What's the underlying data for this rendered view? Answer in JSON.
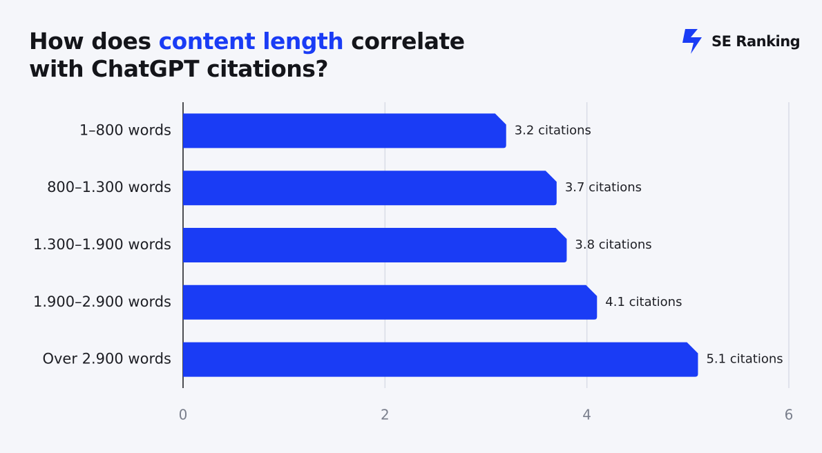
{
  "chart_data": {
    "type": "bar",
    "orientation": "horizontal",
    "title_parts": [
      "How does ",
      "content length",
      " correlate",
      "with ChatGPT citations?"
    ],
    "brand": "SE Ranking",
    "categories": [
      "1–800 words",
      "800–1.300 words",
      "1.300–1.900 words",
      "1.900–2.900 words",
      "Over 2.900 words"
    ],
    "values": [
      3.2,
      3.7,
      3.8,
      4.1,
      5.1
    ],
    "value_labels": [
      "3.2 citations",
      "3.7 citations",
      "3.8 citations",
      "4.1 citations",
      "5.1 citations"
    ],
    "color": "#1a3cf5",
    "xlim": [
      0,
      6
    ],
    "xticks": [
      0,
      2,
      4,
      6
    ],
    "grid": true
  }
}
